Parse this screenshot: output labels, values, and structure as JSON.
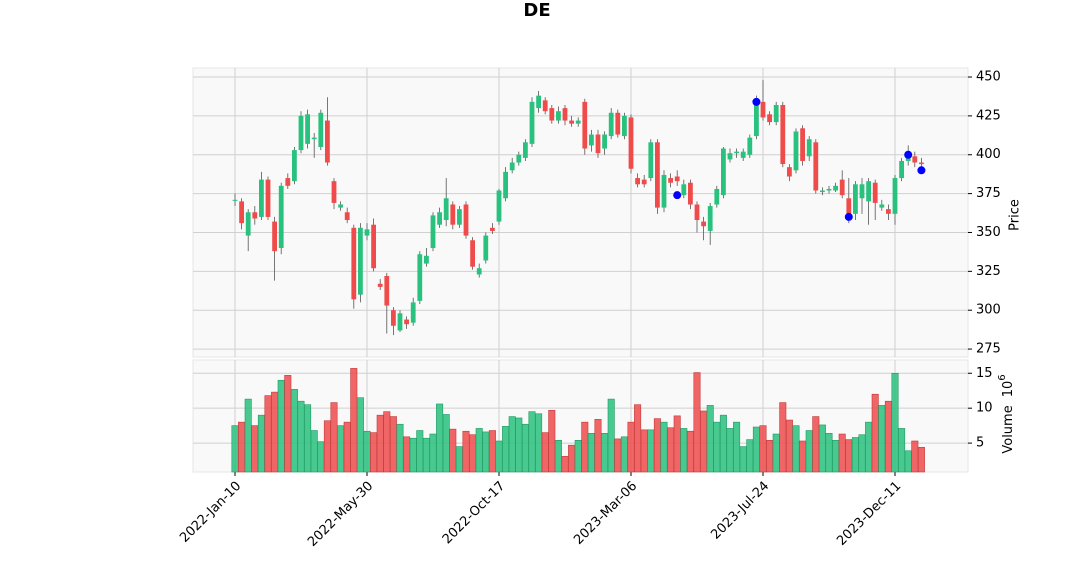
{
  "chart_data": {
    "type": "candlestick",
    "title": "DE",
    "ylabel": "Price",
    "volume_label": "Volume",
    "volume_unit_base": "10",
    "volume_unit_exponent": "6",
    "categories": [
      "2022-Jan-10",
      null,
      null,
      null,
      null,
      null,
      null,
      null,
      null,
      null,
      null,
      null,
      null,
      null,
      null,
      null,
      null,
      null,
      null,
      null,
      "2022-May-30",
      null,
      null,
      null,
      null,
      null,
      null,
      null,
      null,
      null,
      null,
      null,
      null,
      null,
      null,
      null,
      null,
      null,
      null,
      null,
      "2022-Oct-17",
      null,
      null,
      null,
      null,
      null,
      null,
      null,
      null,
      null,
      null,
      null,
      null,
      null,
      null,
      null,
      null,
      null,
      null,
      null,
      "2023-Mar-06",
      null,
      null,
      null,
      null,
      null,
      null,
      null,
      null,
      null,
      null,
      null,
      null,
      null,
      null,
      null,
      null,
      null,
      null,
      null,
      "2023-Jul-24",
      null,
      null,
      null,
      null,
      null,
      null,
      null,
      null,
      null,
      null,
      null,
      null,
      null,
      null,
      null,
      null,
      null,
      null,
      null,
      "2023-Dec-11",
      null,
      null,
      null,
      null
    ],
    "open": [
      371,
      370,
      348,
      363,
      360,
      384,
      357,
      340,
      385,
      383,
      403,
      407,
      410,
      405,
      422,
      383,
      366,
      363,
      353,
      310,
      348,
      355,
      317,
      322,
      300,
      287,
      294,
      292,
      306,
      330,
      340,
      355,
      358,
      368,
      355,
      368,
      345,
      323,
      332,
      353,
      357,
      372,
      390,
      395,
      398,
      407,
      430,
      435,
      430,
      422,
      430,
      422,
      420,
      434,
      406,
      413,
      404,
      412,
      427,
      412,
      424,
      385,
      384,
      385,
      408,
      366,
      385,
      386,
      374,
      382,
      368,
      357,
      351,
      368,
      374,
      397,
      401,
      398,
      400,
      412,
      434,
      426,
      421,
      432,
      392,
      390,
      417,
      399,
      408,
      376,
      377,
      377,
      384,
      372,
      362,
      372,
      370,
      382,
      366,
      365,
      362,
      385,
      396,
      399,
      395
    ],
    "high": [
      375,
      372,
      365,
      367,
      389,
      386,
      360,
      382,
      388,
      405,
      428,
      429,
      414,
      429,
      437,
      385,
      370,
      366,
      355,
      356,
      356,
      359,
      320,
      324,
      302,
      300,
      296,
      308,
      338,
      340,
      363,
      366,
      385,
      370,
      367,
      370,
      347,
      330,
      350,
      356,
      378,
      392,
      398,
      402,
      410,
      437,
      441,
      437,
      432,
      431,
      432,
      425,
      424,
      436,
      416,
      416,
      415,
      430,
      429,
      427,
      426,
      388,
      387,
      410,
      410,
      390,
      388,
      390,
      384,
      384,
      370,
      360,
      369,
      380,
      405,
      404,
      404,
      404,
      413,
      438,
      448,
      428,
      434,
      434,
      394,
      417,
      419,
      412,
      410,
      379,
      380,
      382,
      390,
      385,
      383,
      385,
      385,
      384,
      371,
      368,
      387,
      398,
      406,
      402,
      398
    ],
    "low": [
      367,
      352,
      338,
      355,
      358,
      358,
      319,
      336,
      378,
      381,
      401,
      404,
      398,
      403,
      393,
      365,
      364,
      356,
      301,
      305,
      345,
      325,
      313,
      285,
      284,
      286,
      288,
      290,
      304,
      328,
      338,
      353,
      354,
      352,
      353,
      346,
      326,
      321,
      330,
      349,
      355,
      370,
      388,
      393,
      396,
      405,
      427,
      426,
      420,
      420,
      419,
      418,
      418,
      400,
      402,
      398,
      400,
      410,
      411,
      410,
      388,
      379,
      379,
      383,
      362,
      363,
      379,
      380,
      372,
      365,
      350,
      345,
      342,
      366,
      372,
      395,
      398,
      396,
      398,
      410,
      422,
      419,
      419,
      392,
      383,
      388,
      393,
      396,
      375,
      374,
      375,
      376,
      372,
      356,
      358,
      362,
      355,
      358,
      364,
      358,
      355,
      383,
      393,
      392,
      390
    ],
    "close": [
      371,
      356,
      363,
      359,
      384,
      360,
      338,
      380,
      380,
      403,
      425,
      426,
      411,
      427,
      395,
      369,
      368,
      358,
      307,
      353,
      352,
      327,
      315,
      303,
      290,
      298,
      291,
      305,
      336,
      335,
      361,
      363,
      372,
      355,
      365,
      348,
      328,
      327,
      348,
      351,
      377,
      389,
      395,
      400,
      408,
      434,
      438,
      428,
      422,
      428,
      422,
      420,
      422,
      404,
      413,
      401,
      413,
      427,
      413,
      425,
      391,
      381,
      381,
      408,
      366,
      387,
      382,
      383,
      381,
      368,
      358,
      354,
      367,
      378,
      404,
      401,
      402,
      402,
      411,
      434,
      424,
      421,
      432,
      394,
      386,
      415,
      396,
      410,
      377,
      377,
      378,
      380,
      374,
      360,
      381,
      381,
      383,
      369,
      368,
      362,
      385,
      396,
      399,
      395,
      394
    ],
    "volume": [
      7.5,
      8,
      11.3,
      7.5,
      9,
      11.8,
      12.3,
      14,
      14.7,
      12.7,
      11,
      10.5,
      6.8,
      5.2,
      8.2,
      10.8,
      7.5,
      8,
      15.7,
      11.5,
      6.7,
      6.5,
      9,
      9.5,
      8.8,
      7.7,
      5.9,
      5.7,
      6.8,
      5.7,
      6.3,
      10.6,
      9.1,
      7,
      4.5,
      6.7,
      6.2,
      7.1,
      6.6,
      6.8,
      5.3,
      7.4,
      8.8,
      8.6,
      7.7,
      9.5,
      9.2,
      6.5,
      9.7,
      5.4,
      3.1,
      4.7,
      5.4,
      8,
      6.4,
      8.4,
      6.4,
      11.3,
      5.6,
      5.9,
      8,
      10.5,
      6.9,
      6.9,
      8.5,
      8,
      7.2,
      8.9,
      7.1,
      6.7,
      15.1,
      9.6,
      10.4,
      8,
      9,
      7.1,
      8,
      4.5,
      5.5,
      7.3,
      7.5,
      5.4,
      6.3,
      10.8,
      8.3,
      7.5,
      5.3,
      6.8,
      8.8,
      7.6,
      6.4,
      5.4,
      6.3,
      5.5,
      5.8,
      6.2,
      8,
      12,
      10.4,
      11,
      15,
      7.1,
      3.9,
      5.3,
      4.4
    ],
    "markers": {
      "color": "#0000ff",
      "values": [
        null,
        null,
        null,
        null,
        null,
        null,
        null,
        null,
        null,
        null,
        null,
        null,
        null,
        null,
        null,
        null,
        null,
        null,
        null,
        null,
        null,
        null,
        null,
        null,
        null,
        null,
        null,
        null,
        null,
        null,
        null,
        null,
        null,
        null,
        null,
        null,
        null,
        null,
        null,
        null,
        null,
        null,
        null,
        null,
        null,
        null,
        null,
        null,
        null,
        null,
        null,
        null,
        null,
        null,
        null,
        null,
        null,
        null,
        null,
        null,
        null,
        null,
        null,
        null,
        null,
        null,
        null,
        374,
        null,
        null,
        null,
        null,
        null,
        null,
        null,
        null,
        null,
        null,
        null,
        434,
        null,
        null,
        null,
        null,
        null,
        null,
        null,
        null,
        null,
        null,
        null,
        null,
        null,
        360,
        null,
        null,
        null,
        null,
        null,
        null,
        null,
        null,
        400,
        null,
        390
      ]
    },
    "up_color": "#29c17e",
    "down_color": "#ef4b4b",
    "ylim": [
      269.9,
      455.8
    ],
    "yticks": [
      275,
      300,
      325,
      350,
      375,
      400,
      425,
      450
    ],
    "volume_ylim": [
      0.86,
      16.9
    ],
    "volume_yticks": [
      5,
      10,
      15
    ],
    "grid": true
  }
}
